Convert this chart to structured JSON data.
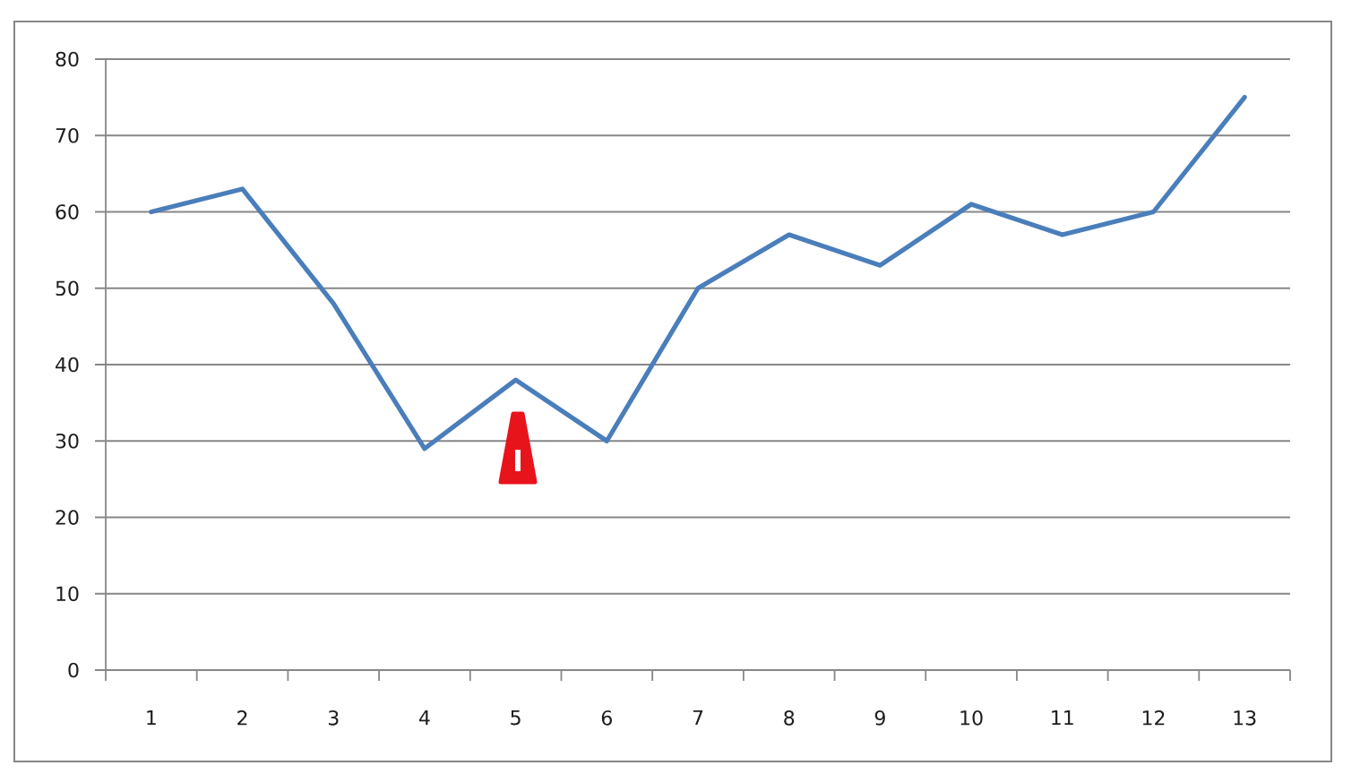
{
  "chart_data": {
    "type": "line",
    "categories": [
      "1",
      "2",
      "3",
      "4",
      "5",
      "6",
      "7",
      "8",
      "9",
      "10",
      "11",
      "12",
      "13"
    ],
    "series": [
      {
        "color": "#4a7ebb",
        "values": [
          60,
          63,
          48,
          29,
          38,
          30,
          50,
          57,
          53,
          61,
          57,
          60,
          75
        ]
      }
    ],
    "ylim": [
      0,
      80
    ],
    "yticks": [
      0,
      10,
      20,
      30,
      40,
      50,
      60,
      70,
      80
    ],
    "grid": "y",
    "marker": "none",
    "line_style": "solid"
  }
}
